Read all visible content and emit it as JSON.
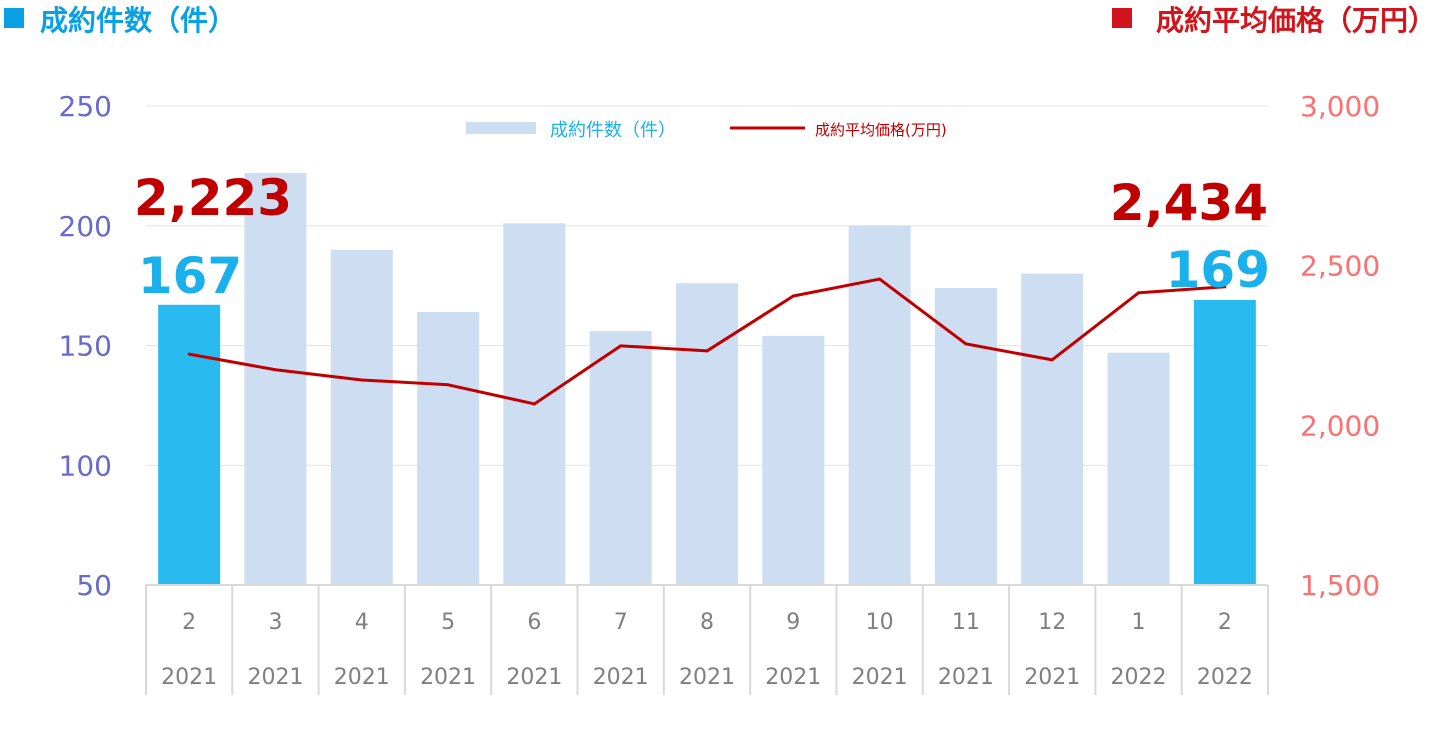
{
  "header": {
    "left_title": "成約件数（件）",
    "right_title": "成約平均価格（万円）"
  },
  "colors": {
    "bar": "#cdddf2",
    "bar_highlight": "#29bbef",
    "line": "#c00000",
    "left_axis": "#6a6acc",
    "right_axis": "#ff7070",
    "left_title": "#0aa0e6",
    "right_title": "#d0161c"
  },
  "chart_data": {
    "type": "bar+line",
    "categories": [
      {
        "month": "2",
        "year": "2021"
      },
      {
        "month": "3",
        "year": "2021"
      },
      {
        "month": "4",
        "year": "2021"
      },
      {
        "month": "5",
        "year": "2021"
      },
      {
        "month": "6",
        "year": "2021"
      },
      {
        "month": "7",
        "year": "2021"
      },
      {
        "month": "8",
        "year": "2021"
      },
      {
        "month": "9",
        "year": "2021"
      },
      {
        "month": "10",
        "year": "2021"
      },
      {
        "month": "11",
        "year": "2021"
      },
      {
        "month": "12",
        "year": "2021"
      },
      {
        "month": "1",
        "year": "2022"
      },
      {
        "month": "2",
        "year": "2022"
      }
    ],
    "series": [
      {
        "name": "成約件数（件）",
        "type": "bar",
        "axis": "left",
        "values": [
          167,
          222,
          190,
          164,
          201,
          156,
          176,
          154,
          200,
          174,
          180,
          147,
          169
        ],
        "highlighted": [
          0,
          12
        ]
      },
      {
        "name": "成約平均価格(万円)",
        "type": "line",
        "axis": "right",
        "values": [
          2223,
          2174,
          2142,
          2127,
          2067,
          2249,
          2233,
          2405,
          2458,
          2255,
          2205,
          2415,
          2434
        ]
      }
    ],
    "left_axis": {
      "ylim": [
        50,
        250
      ],
      "ticks": [
        "50",
        "100",
        "150",
        "200",
        "250"
      ]
    },
    "right_axis": {
      "ylim": [
        1500,
        3000
      ],
      "ticks": [
        "1,500",
        "2,000",
        "2,500",
        "3,000"
      ]
    },
    "annotations": {
      "first_price": "2,223",
      "first_count": "167",
      "last_price": "2,434",
      "last_count": "169"
    },
    "legend_position": "top-center",
    "grid": true
  }
}
